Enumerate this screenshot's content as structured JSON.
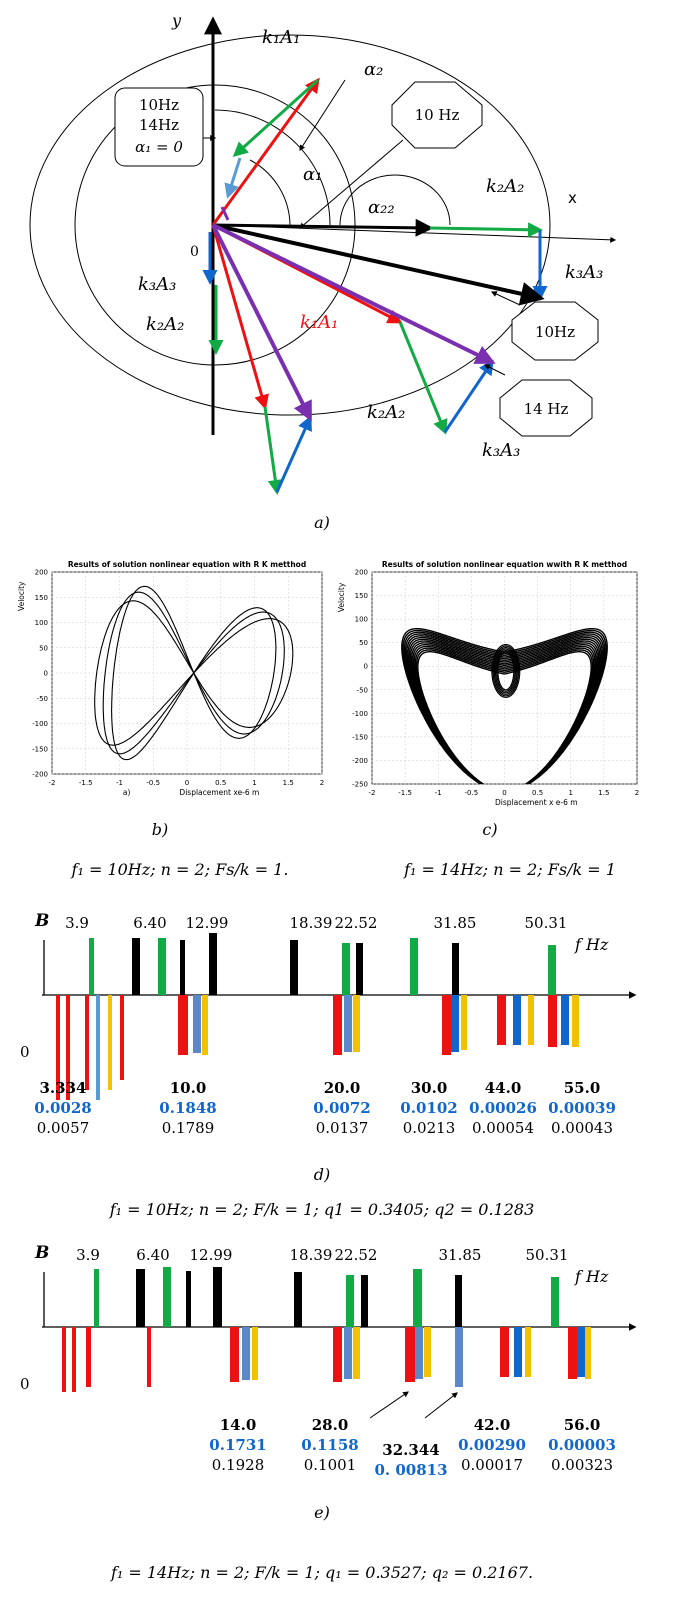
{
  "colors": {
    "red": "#ee1111",
    "green": "#11aa44",
    "blue": "#1166cc",
    "black": "#000000",
    "purple": "#7a2fb0",
    "steel": "#5a88c8",
    "gold": "#f2c200",
    "lightblue": "#5b9bd5"
  },
  "panel_a": {
    "axis_y": "y",
    "axis_x": "x",
    "labels": {
      "k1A1_top": "k₁A₁",
      "alpha2": "α₂",
      "alpha1": "α₁",
      "alpha22": "α₂₂",
      "k2A2_right": "k₂A₂",
      "k3A3_right": "k₃A₃",
      "zero": "0",
      "k3A3_left": "k₃A₃",
      "k2A2_left": "k₂A₂",
      "k1A1_red": "k₁A₁",
      "k2A2_bottom": "k₂A₂",
      "k3A3_bottom": "k₃A₃"
    },
    "box_left": [
      "10Hz",
      "14Hz",
      "α₁ = 0"
    ],
    "oct_top": "10 Hz",
    "oct_mid": "10Hz",
    "oct_bot": "14 Hz",
    "caption": "a)"
  },
  "chart_data": [
    {
      "type": "line",
      "title": "Results of solution nonlinear equation with R K metthod",
      "xlabel": "Displacement   xe-6 m",
      "ylabel": "Velocity",
      "xlim": [
        -2,
        2
      ],
      "ylim": [
        -200,
        200
      ],
      "xticks": [
        "-2",
        "-1.5",
        "-1",
        "-0.5",
        "0",
        "0.5",
        "1",
        "1.5",
        "2"
      ],
      "yticks": [
        "200",
        "150",
        "100",
        "50",
        "0",
        "-50",
        "-100",
        "-150",
        "-200"
      ],
      "sublabel": "a)",
      "caption": "b)",
      "params": "f₁ = 10Hz; n = 2; Fs/k = 1."
    },
    {
      "type": "line",
      "title": "Results of solution nonlinear equation wwith R K metthod",
      "xlabel": "Displacement   x e-6 m",
      "ylabel": "Velocity",
      "xlim": [
        -2,
        2
      ],
      "ylim": [
        -250,
        200
      ],
      "xticks": [
        "-2",
        "-1.5",
        "-1",
        "-0.5",
        "0",
        "0.5",
        "1",
        "1.5",
        "2"
      ],
      "yticks": [
        "200",
        "150",
        "100",
        "50",
        "0",
        "-50",
        "-100",
        "-150",
        "-200",
        "-250"
      ],
      "caption": "c)",
      "params": "f₁ = 14Hz; n = 2; Fs/k = 1"
    }
  ],
  "panel_d": {
    "axis_label": "B",
    "f_label": "f Hz",
    "zero": "0",
    "top_freqs": [
      "3.9",
      "6.40",
      "12.99",
      "18.39",
      "22.52",
      "31.85",
      "50.31"
    ],
    "groups": [
      {
        "freq": "3.334",
        "v1": "0.0028",
        "v2": "0.0057"
      },
      {
        "freq": "10.0",
        "v1": "0.1848",
        "v2": "0.1789"
      },
      {
        "freq": "20.0",
        "v1": "0.0072",
        "v2": "0.0137"
      },
      {
        "freq": "30.0",
        "v1": "0.0102",
        "v2": "0.0213"
      },
      {
        "freq": "44.0",
        "v1": "0.00026",
        "v2": "0.00054"
      },
      {
        "freq": "55.0",
        "v1": "0.00039",
        "v2": "0.00043"
      }
    ],
    "caption": "d)",
    "params": "f₁ = 10Hz;  n = 2;  F/k = 1;  q1 = 0.3405; q2 = 0.1283"
  },
  "panel_e": {
    "axis_label": "B",
    "f_label": "f Hz",
    "zero": "0",
    "top_freqs": [
      "3.9",
      "6.40",
      "12.99",
      "18.39",
      "22.52",
      "31.85",
      "50.31"
    ],
    "groups": [
      {
        "freq": "14.0",
        "v1": "0.1731",
        "v2": "0.1928"
      },
      {
        "freq": "28.0",
        "v1": "0.1158",
        "v2": "0.1001"
      },
      {
        "freq": "32.344",
        "v1": "0. 00813",
        "v2": ""
      },
      {
        "freq": "42.0",
        "v1": "0.00290",
        "v2": "0.00017"
      },
      {
        "freq": "56.0",
        "v1": "0.00003",
        "v2": "0.00323"
      }
    ],
    "caption": "e)",
    "params": "f₁ = 14Hz;  n = 2; F/k = 1;  q₁ = 0.3527;  q₂ = 0.2167."
  }
}
